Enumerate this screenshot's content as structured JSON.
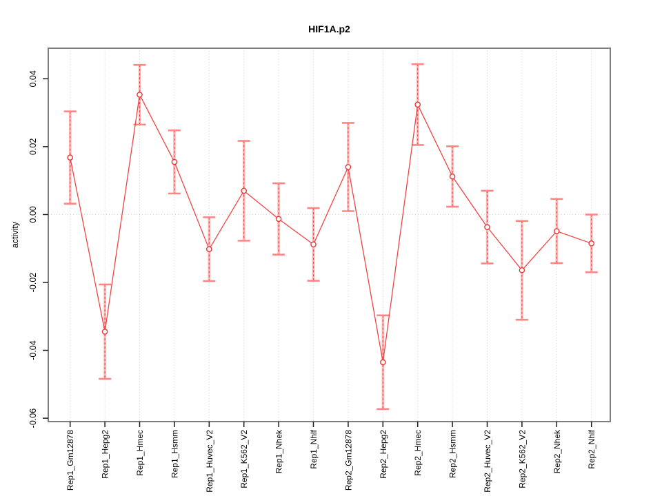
{
  "chart_data": {
    "type": "line",
    "title": "HIF1A.p2",
    "ylabel": "activity",
    "xlabel": "",
    "ylim": [
      -0.061,
      0.049
    ],
    "yticks": [
      {
        "value": 0.04,
        "label": "0.04"
      },
      {
        "value": 0.02,
        "label": "0.02"
      },
      {
        "value": 0.0,
        "label": "0.00"
      },
      {
        "value": -0.02,
        "label": "-0.02"
      },
      {
        "value": -0.04,
        "label": "-0.04"
      },
      {
        "value": -0.06,
        "label": "-0.06"
      }
    ],
    "grid": {
      "vertical_per_category": true,
      "horizontal_zero_line": true,
      "style": "dotted"
    },
    "legend": "none",
    "categories": [
      "Rep1_Gm12878",
      "Rep1_Hepg2",
      "Rep1_Hmec",
      "Rep1_Hsmm",
      "Rep1_Huvec_V2",
      "Rep1_K562_V2",
      "Rep1_Nhek",
      "Rep1_Nhlf",
      "Rep2_Gm12878",
      "Rep2_Hepg2",
      "Rep2_Hmec",
      "Rep2_Hsmm",
      "Rep2_Huvec_V2",
      "Rep2_K562_V2",
      "Rep2_Nhek",
      "Rep2_Nhlf"
    ],
    "series": [
      {
        "name": "activity",
        "marker": "open-circle",
        "values": [
          0.0168,
          -0.0345,
          0.0353,
          0.0155,
          -0.0102,
          0.007,
          -0.0013,
          -0.0088,
          0.014,
          -0.0435,
          0.0324,
          0.0112,
          -0.0037,
          -0.0164,
          -0.0049,
          -0.0085
        ],
        "ci_low": [
          0.0032,
          -0.0484,
          0.0265,
          0.0062,
          -0.0196,
          -0.0077,
          -0.0118,
          -0.0195,
          0.001,
          -0.0573,
          0.0205,
          0.0023,
          -0.0144,
          -0.031,
          -0.0143,
          -0.017
        ],
        "ci_high": [
          0.0304,
          -0.0206,
          0.0441,
          0.0248,
          -0.0008,
          0.0217,
          0.0092,
          0.0019,
          0.027,
          -0.0297,
          0.0443,
          0.0201,
          0.007,
          -0.0019,
          0.0046,
          0.0
        ]
      }
    ],
    "colors": {
      "line": "#f04343",
      "marker_stroke": "#e83535",
      "errorbar_band": "#ffabab",
      "errorbar_dash": "#f04343",
      "errorbar_cap": "#ff8585",
      "gridline": "#cfcfcf",
      "frame": "#7d7d7d",
      "tick": "#1a1a1a",
      "text": "#000000"
    }
  }
}
